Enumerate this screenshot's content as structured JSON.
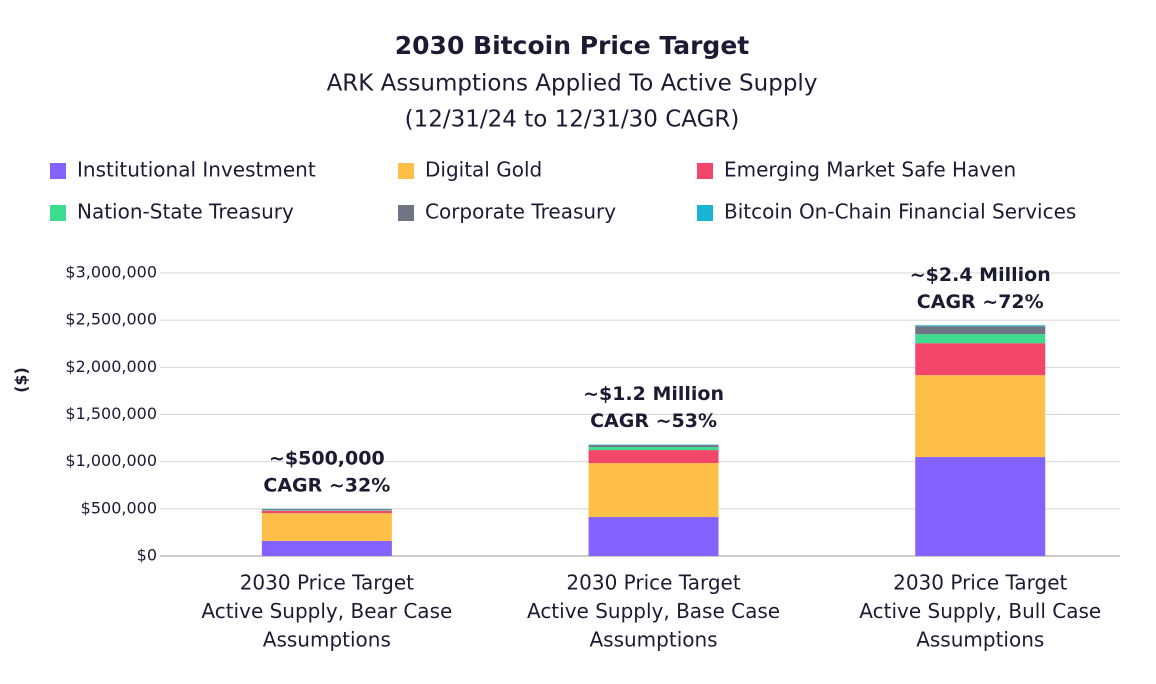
{
  "chart_data": {
    "type": "stacked-bar",
    "title": "2030 Bitcoin Price Target",
    "subtitle": [
      "ARK Assumptions Applied To Active Supply",
      "(12/31/24 to 12/31/30 CAGR)"
    ],
    "y_label": "($)",
    "categories": [
      [
        "2030 Price Target",
        "Active Supply, Bear Case",
        "Assumptions"
      ],
      [
        "2030 Price Target",
        "Active Supply, Base Case",
        "Assumptions"
      ],
      [
        "2030 Price Target",
        "Active Supply, Bull Case",
        "Assumptions"
      ]
    ],
    "series": [
      {
        "name": "Institutional Investment",
        "color": "#8462ff",
        "values": [
          160000,
          413000,
          1049000
        ]
      },
      {
        "name": "Digital Gold",
        "color": "#fdbf48",
        "values": [
          295000,
          572000,
          868000
        ]
      },
      {
        "name": "Emerging Market Safe Haven",
        "color": "#f2466b",
        "values": [
          25000,
          138000,
          339000
        ]
      },
      {
        "name": "Nation-State Treasury",
        "color": "#3ddc8e",
        "values": [
          5000,
          32000,
          96000
        ]
      },
      {
        "name": "Corporate Treasury",
        "color": "#6f7584",
        "values": [
          12000,
          21000,
          84000
        ]
      },
      {
        "name": "Bitcoin On-Chain Financial Services",
        "color": "#1bb3d4",
        "values": [
          3000,
          5000,
          10000
        ]
      }
    ],
    "annotations": [
      [
        "~$500,000",
        "CAGR ~32%"
      ],
      [
        "~$1.2 Million",
        "CAGR ~53%"
      ],
      [
        "~$2.4 Million",
        "CAGR ~72%"
      ]
    ],
    "ylim": [
      0,
      3000000
    ],
    "yticks": [
      {
        "value": 0,
        "label": "$0"
      },
      {
        "value": 500000,
        "label": "$500,000"
      },
      {
        "value": 1000000,
        "label": "$1,000,000"
      },
      {
        "value": 1500000,
        "label": "$1,500,000"
      },
      {
        "value": 2000000,
        "label": "$2,000,000"
      },
      {
        "value": 2500000,
        "label": "$2,500,000"
      },
      {
        "value": 3000000,
        "label": "$3,000,000"
      }
    ],
    "grid": true
  }
}
